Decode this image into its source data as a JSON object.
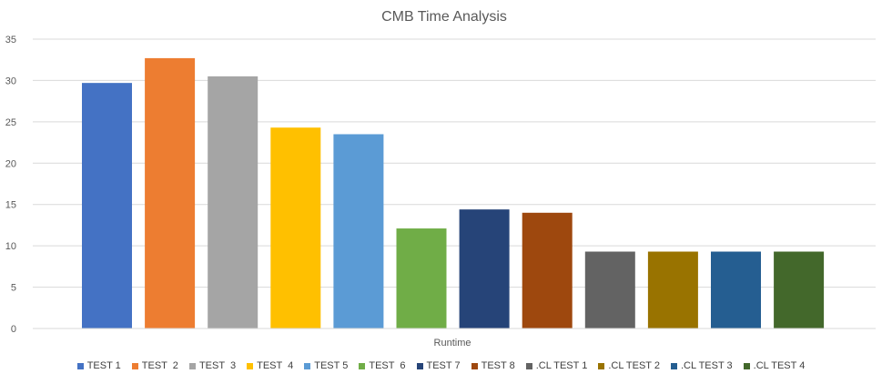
{
  "chart_data": {
    "type": "bar",
    "title": "CMB Time Analysis",
    "xlabel": "Runtime",
    "ylabel": "",
    "categories": [
      "Runtime"
    ],
    "ylim": [
      0,
      35
    ],
    "yticks": [
      0,
      5,
      10,
      15,
      20,
      25,
      30,
      35
    ],
    "grid": true,
    "legend_position": "bottom",
    "series": [
      {
        "name": "TEST 1",
        "values": [
          29.7
        ],
        "color": "#4472c4"
      },
      {
        "name": "TEST  2",
        "values": [
          32.7
        ],
        "color": "#ed7d31"
      },
      {
        "name": "TEST  3",
        "values": [
          30.5
        ],
        "color": "#a5a5a5"
      },
      {
        "name": "TEST  4",
        "values": [
          24.3
        ],
        "color": "#ffc000"
      },
      {
        "name": "TEST 5",
        "values": [
          23.5
        ],
        "color": "#5b9bd5"
      },
      {
        "name": "TEST  6",
        "values": [
          12.1
        ],
        "color": "#70ad47"
      },
      {
        "name": "TEST 7",
        "values": [
          14.4
        ],
        "color": "#264478"
      },
      {
        "name": "TEST 8",
        "values": [
          14.0
        ],
        "color": "#9e480e"
      },
      {
        "name": ".CL TEST 1",
        "values": [
          9.3
        ],
        "color": "#636363"
      },
      {
        "name": ".CL TEST 2",
        "values": [
          9.3
        ],
        "color": "#997300"
      },
      {
        "name": ".CL TEST 3",
        "values": [
          9.3
        ],
        "color": "#255e91"
      },
      {
        "name": ".CL TEST 4",
        "values": [
          9.3
        ],
        "color": "#43682b"
      }
    ]
  }
}
